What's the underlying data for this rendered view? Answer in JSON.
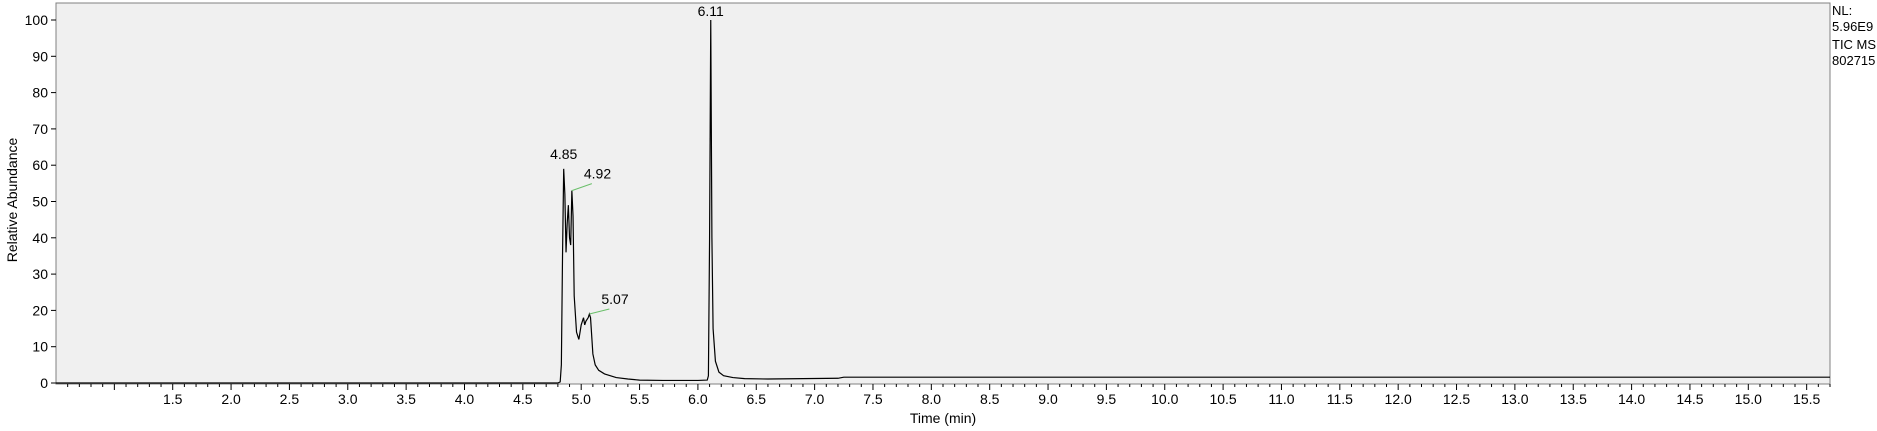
{
  "chart_data": {
    "type": "line",
    "xlabel": "Time (min)",
    "ylabel": "Relative Abundance",
    "xlim": [
      0.5,
      15.7
    ],
    "ylim": [
      0,
      100
    ],
    "x_ticks": [
      "1.5",
      "2.0",
      "2.5",
      "3.0",
      "3.5",
      "4.0",
      "4.5",
      "5.0",
      "5.5",
      "6.0",
      "6.5",
      "7.0",
      "7.5",
      "8.0",
      "8.5",
      "9.0",
      "9.5",
      "10.0",
      "10.5",
      "11.0",
      "11.5",
      "12.0",
      "12.5",
      "13.0",
      "13.5",
      "14.0",
      "14.5",
      "15.0",
      "15.5"
    ],
    "y_ticks": [
      "0",
      "10",
      "20",
      "30",
      "40",
      "50",
      "60",
      "70",
      "80",
      "90",
      "100"
    ],
    "info": [
      "NL:",
      "5.96E9",
      "TIC  MS",
      "802715"
    ],
    "peak_labels": [
      {
        "text": "4.85",
        "x": 4.85,
        "y": 59
      },
      {
        "text": "4.92",
        "x": 4.92,
        "y": 53
      },
      {
        "text": "5.07",
        "x": 5.07,
        "y": 19
      },
      {
        "text": "6.11",
        "x": 6.11,
        "y": 100
      }
    ],
    "series": [
      {
        "color": "#000000",
        "points": [
          [
            0.5,
            0
          ],
          [
            4.8,
            0
          ],
          [
            4.82,
            0.3
          ],
          [
            4.83,
            5
          ],
          [
            4.84,
            35
          ],
          [
            4.85,
            59
          ],
          [
            4.86,
            52
          ],
          [
            4.87,
            36
          ],
          [
            4.88,
            44
          ],
          [
            4.89,
            49
          ],
          [
            4.9,
            40
          ],
          [
            4.91,
            38
          ],
          [
            4.92,
            53
          ],
          [
            4.93,
            46
          ],
          [
            4.94,
            24
          ],
          [
            4.96,
            14
          ],
          [
            4.98,
            12
          ],
          [
            5.0,
            16
          ],
          [
            5.02,
            18
          ],
          [
            5.03,
            16
          ],
          [
            5.04,
            17
          ],
          [
            5.06,
            18
          ],
          [
            5.07,
            19
          ],
          [
            5.08,
            18
          ],
          [
            5.1,
            8
          ],
          [
            5.12,
            5
          ],
          [
            5.15,
            3.5
          ],
          [
            5.2,
            2.5
          ],
          [
            5.3,
            1.5
          ],
          [
            5.4,
            1.1
          ],
          [
            5.5,
            0.8
          ],
          [
            5.7,
            0.7
          ],
          [
            6.0,
            0.7
          ],
          [
            6.08,
            0.8
          ],
          [
            6.09,
            2
          ],
          [
            6.1,
            40
          ],
          [
            6.11,
            100
          ],
          [
            6.12,
            40
          ],
          [
            6.13,
            15
          ],
          [
            6.15,
            6
          ],
          [
            6.18,
            3
          ],
          [
            6.22,
            2
          ],
          [
            6.3,
            1.5
          ],
          [
            6.4,
            1.2
          ],
          [
            6.6,
            1.1
          ],
          [
            6.9,
            1.2
          ],
          [
            7.2,
            1.3
          ],
          [
            7.25,
            1.6
          ],
          [
            8.0,
            1.6
          ],
          [
            10.0,
            1.6
          ],
          [
            12.0,
            1.6
          ],
          [
            14.0,
            1.6
          ],
          [
            15.7,
            1.6
          ]
        ]
      }
    ]
  }
}
